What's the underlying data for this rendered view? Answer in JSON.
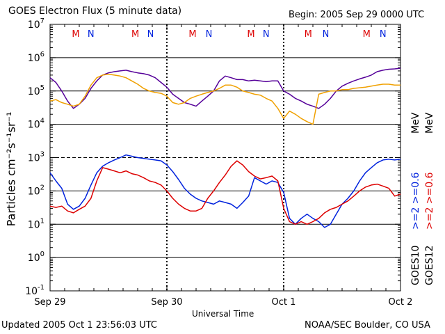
{
  "header": {
    "title": "GOES Electron Flux (5 minute data)",
    "begin": "Begin: 2005 Sep 29 0000 UTC"
  },
  "footer": {
    "updated": "Updated 2005 Oct  1 23:56:03 UTC",
    "credit": "NOAA/SEC Boulder, CO USA"
  },
  "side_labels": {
    "goes10": "GOES10",
    "goes12": "GOES12",
    "blue_label": ">=2 >=0.6",
    "red_label": ">=2 >=0.6",
    "unit": "MeV"
  },
  "colors": {
    "goes10_2mev": "#0022dd",
    "goes12_2mev": "#dd0000",
    "goes10_06mev": "#550099",
    "goes12_06mev": "#f0a000",
    "marker_M": "#dd0000",
    "marker_N": "#0022dd"
  },
  "chart_data": {
    "type": "line",
    "title": "GOES Electron Flux (5 minute data)",
    "xlabel": "Universal Time",
    "ylabel": "Particles cm⁻²s⁻¹sr⁻¹",
    "xlim": [
      0,
      3
    ],
    "ylim": [
      0.1,
      10000000
    ],
    "yscale": "log",
    "x_ticks": [
      {
        "x": 0,
        "label": "Sep 29"
      },
      {
        "x": 1,
        "label": "Sep 30"
      },
      {
        "x": 2,
        "label": "Oct 1"
      },
      {
        "x": 3,
        "label": "Oct 2"
      }
    ],
    "y_ticks": [
      {
        "v": 0.1,
        "base": "10",
        "exp": "-1"
      },
      {
        "v": 1,
        "base": "10",
        "exp": "0"
      },
      {
        "v": 10,
        "base": "10",
        "exp": "1"
      },
      {
        "v": 100,
        "base": "10",
        "exp": "2"
      },
      {
        "v": 1000,
        "base": "10",
        "exp": "3"
      },
      {
        "v": 10000,
        "base": "10",
        "exp": "4"
      },
      {
        "v": 100000,
        "base": "10",
        "exp": "5"
      },
      {
        "v": 1000000,
        "base": "10",
        "exp": "6"
      },
      {
        "v": 10000000,
        "base": "10",
        "exp": "7"
      }
    ],
    "solid_reference_lines": [
      1,
      10,
      100,
      10000,
      100000,
      1000000
    ],
    "dashed_reference_lines": [
      1000
    ],
    "grid": false,
    "markers": [
      {
        "x": 0.22,
        "label": "M"
      },
      {
        "x": 0.35,
        "label": "N"
      },
      {
        "x": 0.73,
        "label": "M"
      },
      {
        "x": 0.86,
        "label": "N"
      },
      {
        "x": 1.22,
        "label": "M"
      },
      {
        "x": 1.36,
        "label": "N"
      },
      {
        "x": 1.72,
        "label": "M"
      },
      {
        "x": 1.85,
        "label": "N"
      },
      {
        "x": 2.21,
        "label": "M"
      },
      {
        "x": 2.36,
        "label": "N"
      },
      {
        "x": 2.71,
        "label": "M"
      },
      {
        "x": 2.85,
        "label": "N"
      }
    ],
    "series": [
      {
        "name": "GOES10 >=2 MeV",
        "color": "#0022dd",
        "x": [
          0.0,
          0.05,
          0.1,
          0.15,
          0.2,
          0.25,
          0.3,
          0.35,
          0.4,
          0.45,
          0.5,
          0.55,
          0.6,
          0.65,
          0.7,
          0.75,
          0.8,
          0.85,
          0.9,
          0.95,
          1.0,
          1.05,
          1.1,
          1.15,
          1.2,
          1.25,
          1.3,
          1.35,
          1.4,
          1.45,
          1.5,
          1.55,
          1.6,
          1.65,
          1.7,
          1.75,
          1.8,
          1.85,
          1.9,
          1.95,
          2.0,
          2.05,
          2.1,
          2.15,
          2.2,
          2.25,
          2.3,
          2.35,
          2.4,
          2.45,
          2.5,
          2.55,
          2.6,
          2.65,
          2.7,
          2.75,
          2.8,
          2.85,
          2.9,
          2.95,
          3.0
        ],
        "y": [
          350,
          200,
          120,
          40,
          28,
          35,
          60,
          150,
          350,
          550,
          700,
          850,
          1000,
          1200,
          1100,
          1000,
          950,
          900,
          850,
          800,
          600,
          380,
          220,
          120,
          80,
          60,
          50,
          45,
          40,
          50,
          45,
          40,
          30,
          45,
          70,
          250,
          200,
          160,
          200,
          180,
          90,
          15,
          10,
          15,
          20,
          15,
          12,
          8,
          10,
          20,
          40,
          60,
          100,
          200,
          350,
          500,
          700,
          850,
          900,
          850,
          900
        ]
      },
      {
        "name": "GOES12 >=2 MeV",
        "color": "#dd0000",
        "x": [
          0.0,
          0.05,
          0.1,
          0.15,
          0.2,
          0.25,
          0.3,
          0.35,
          0.4,
          0.45,
          0.5,
          0.55,
          0.6,
          0.65,
          0.7,
          0.75,
          0.8,
          0.85,
          0.9,
          0.95,
          1.0,
          1.05,
          1.1,
          1.15,
          1.2,
          1.25,
          1.3,
          1.35,
          1.4,
          1.45,
          1.5,
          1.55,
          1.6,
          1.65,
          1.7,
          1.75,
          1.8,
          1.85,
          1.9,
          1.95,
          2.0,
          2.05,
          2.1,
          2.15,
          2.2,
          2.25,
          2.3,
          2.35,
          2.4,
          2.45,
          2.5,
          2.55,
          2.6,
          2.65,
          2.7,
          2.75,
          2.8,
          2.85,
          2.9,
          2.95,
          3.0
        ],
        "y": [
          35,
          32,
          35,
          25,
          22,
          28,
          35,
          60,
          200,
          500,
          450,
          400,
          350,
          400,
          330,
          300,
          250,
          200,
          180,
          150,
          100,
          60,
          40,
          30,
          25,
          25,
          30,
          60,
          100,
          180,
          300,
          550,
          800,
          600,
          380,
          280,
          230,
          250,
          280,
          200,
          30,
          12,
          10,
          12,
          10,
          12,
          15,
          22,
          28,
          32,
          40,
          50,
          70,
          100,
          130,
          150,
          160,
          140,
          120,
          70,
          80
        ]
      },
      {
        "name": "GOES10 >=0.6 MeV",
        "color": "#550099",
        "x": [
          0.0,
          0.05,
          0.1,
          0.15,
          0.2,
          0.25,
          0.3,
          0.35,
          0.4,
          0.45,
          0.5,
          0.55,
          0.6,
          0.65,
          0.7,
          0.75,
          0.8,
          0.85,
          0.9,
          0.95,
          1.0,
          1.05,
          1.1,
          1.15,
          1.2,
          1.25,
          1.3,
          1.35,
          1.4,
          1.45,
          1.5,
          1.55,
          1.6,
          1.65,
          1.7,
          1.75,
          1.8,
          1.85,
          1.9,
          1.95,
          2.0,
          2.05,
          2.1,
          2.15,
          2.2,
          2.25,
          2.3,
          2.35,
          2.4,
          2.45,
          2.5,
          2.55,
          2.6,
          2.65,
          2.7,
          2.75,
          2.8,
          2.85,
          2.9,
          2.95,
          3.0
        ],
        "y": [
          250000,
          180000,
          100000,
          50000,
          30000,
          40000,
          60000,
          120000,
          200000,
          300000,
          350000,
          380000,
          400000,
          420000,
          380000,
          350000,
          330000,
          300000,
          250000,
          180000,
          130000,
          80000,
          60000,
          45000,
          40000,
          35000,
          50000,
          70000,
          100000,
          200000,
          280000,
          250000,
          220000,
          220000,
          200000,
          210000,
          200000,
          190000,
          200000,
          200000,
          100000,
          80000,
          60000,
          50000,
          40000,
          35000,
          30000,
          40000,
          60000,
          100000,
          140000,
          170000,
          200000,
          230000,
          260000,
          300000,
          380000,
          420000,
          450000,
          460000,
          480000
        ]
      },
      {
        "name": "GOES12 >=0.6 MeV",
        "color": "#f0a000",
        "x": [
          0.0,
          0.05,
          0.1,
          0.15,
          0.2,
          0.25,
          0.3,
          0.35,
          0.4,
          0.45,
          0.5,
          0.55,
          0.6,
          0.65,
          0.7,
          0.75,
          0.8,
          0.85,
          0.9,
          0.95,
          1.0,
          1.05,
          1.1,
          1.15,
          1.2,
          1.25,
          1.3,
          1.35,
          1.4,
          1.45,
          1.5,
          1.55,
          1.6,
          1.65,
          1.7,
          1.75,
          1.8,
          1.85,
          1.9,
          1.95,
          2.0,
          2.05,
          2.1,
          2.15,
          2.2,
          2.25,
          2.3,
          2.35,
          2.4,
          2.45,
          2.5,
          2.55,
          2.6,
          2.65,
          2.7,
          2.75,
          2.8,
          2.85,
          2.9,
          2.95,
          3.0
        ],
        "y": [
          50000,
          55000,
          45000,
          40000,
          35000,
          40000,
          70000,
          150000,
          250000,
          300000,
          320000,
          300000,
          280000,
          250000,
          200000,
          160000,
          120000,
          100000,
          90000,
          85000,
          70000,
          45000,
          40000,
          45000,
          60000,
          70000,
          80000,
          90000,
          100000,
          120000,
          150000,
          150000,
          130000,
          100000,
          90000,
          80000,
          75000,
          60000,
          50000,
          30000,
          15000,
          25000,
          20000,
          15000,
          12000,
          10000,
          80000,
          90000,
          100000,
          100000,
          110000,
          110000,
          120000,
          125000,
          130000,
          140000,
          150000,
          160000,
          160000,
          150000,
          150000
        ]
      }
    ]
  }
}
